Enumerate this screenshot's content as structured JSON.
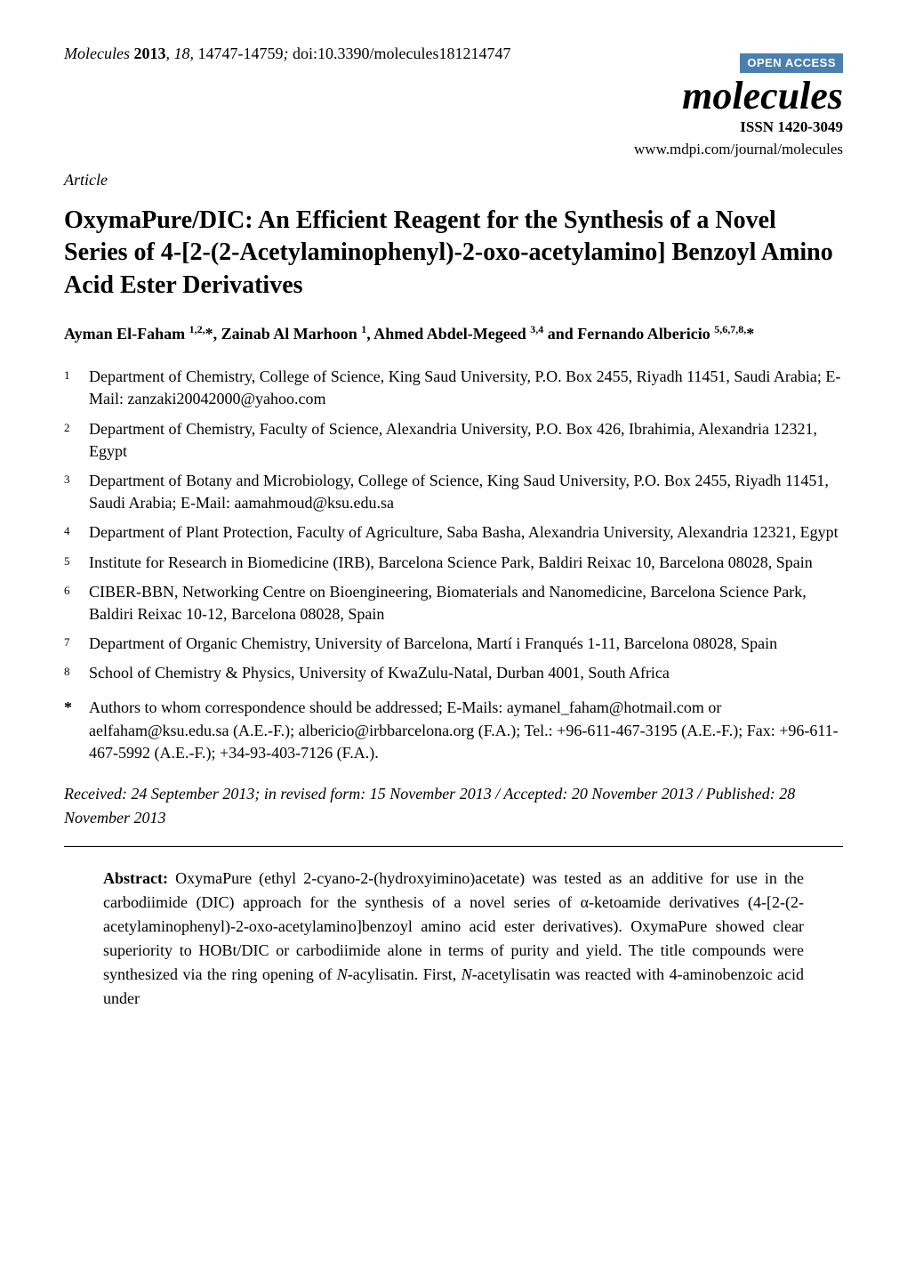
{
  "header": {
    "journal_abbrev": "Molecules",
    "year": "2013",
    "volume": "18",
    "pages": "14747-14759",
    "doi": "doi:10.3390/molecules181214747"
  },
  "branding": {
    "open_access_label": "OPEN ACCESS",
    "open_access_bg": "#4a7fb0",
    "open_access_fg": "#ffffff",
    "journal_logo": "molecules",
    "issn": "ISSN 1420-3049",
    "url": "www.mdpi.com/journal/molecules"
  },
  "article_type": "Article",
  "title": "OxymaPure/DIC: An Efficient Reagent for the Synthesis of a Novel Series of 4-[2-(2-Acetylaminophenyl)-2-oxo-acetylamino] Benzoyl Amino Acid Ester Derivatives",
  "authors_html": "Ayman El-Faham <sup>1,2,</sup>*, Zainab Al Marhoon <sup>1</sup>, Ahmed Abdel-Megeed <sup>3,4</sup> and Fernando Albericio <sup>5,6,7,8,</sup>*",
  "affiliations": [
    {
      "num": "1",
      "text": "Department of Chemistry, College of Science, King Saud University, P.O. Box 2455, Riyadh 11451, Saudi Arabia; E-Mail: zanzaki20042000@yahoo.com"
    },
    {
      "num": "2",
      "text": "Department of Chemistry, Faculty of Science, Alexandria University, P.O. Box 426, Ibrahimia, Alexandria 12321, Egypt"
    },
    {
      "num": "3",
      "text": "Department of Botany and Microbiology, College of Science, King Saud University, P.O. Box 2455, Riyadh 11451, Saudi Arabia; E-Mail: aamahmoud@ksu.edu.sa"
    },
    {
      "num": "4",
      "text": "Department of Plant Protection, Faculty of Agriculture, Saba Basha, Alexandria University, Alexandria 12321, Egypt"
    },
    {
      "num": "5",
      "text": "Institute for Research in Biomedicine (IRB), Barcelona Science Park, Baldiri Reixac 10, Barcelona 08028, Spain"
    },
    {
      "num": "6",
      "text": "CIBER-BBN, Networking Centre on Bioengineering, Biomaterials and Nanomedicine, Barcelona Science Park, Baldiri Reixac 10-12, Barcelona 08028, Spain"
    },
    {
      "num": "7",
      "text": "Department of Organic Chemistry, University of Barcelona, Martí i Franqués 1-11, Barcelona 08028, Spain"
    },
    {
      "num": "8",
      "text": "School of Chemistry & Physics, University of KwaZulu-Natal, Durban 4001, South Africa"
    }
  ],
  "correspondence": {
    "star": "*",
    "text": "Authors to whom correspondence should be addressed; E-Mails: aymanel_faham@hotmail.com or aelfaham@ksu.edu.sa (A.E.-F.); albericio@irbbarcelona.org (F.A.); Tel.: +96-611-467-3195 (A.E.-F.); Fax: +96-611-467-5992 (A.E.-F.); +34-93-403-7126 (F.A.)."
  },
  "dates": "Received: 24 September 2013; in revised form: 15 November 2013 / Accepted: 20 November 2013 / Published: 28 November 2013",
  "abstract": {
    "label": "Abstract:",
    "text_html": "OxymaPure (ethyl 2-cyano-2-(hydroxyimino)acetate) was tested as an additive for use in the carbodiimide (DIC) approach for the synthesis of a novel series of α-ketoamide derivatives (4-[2-(2-acetylaminophenyl)-2-oxo-acetylamino]benzoyl amino acid ester derivatives). OxymaPure showed clear superiority to HOBt/DIC or carbodiimide alone in terms of purity and yield. The title compounds were synthesized via the ring opening of <span class=\"ital\">N</span>-acylisatin. First, <span class=\"ital\">N</span>-acetylisatin was reacted with 4-aminobenzoic acid under"
  },
  "colors": {
    "text": "#000000",
    "background": "#ffffff",
    "divider": "#000000"
  },
  "typography": {
    "body_font": "Times New Roman",
    "title_size_pt": 21,
    "body_size_pt": 14,
    "logo_size_pt": 33
  }
}
